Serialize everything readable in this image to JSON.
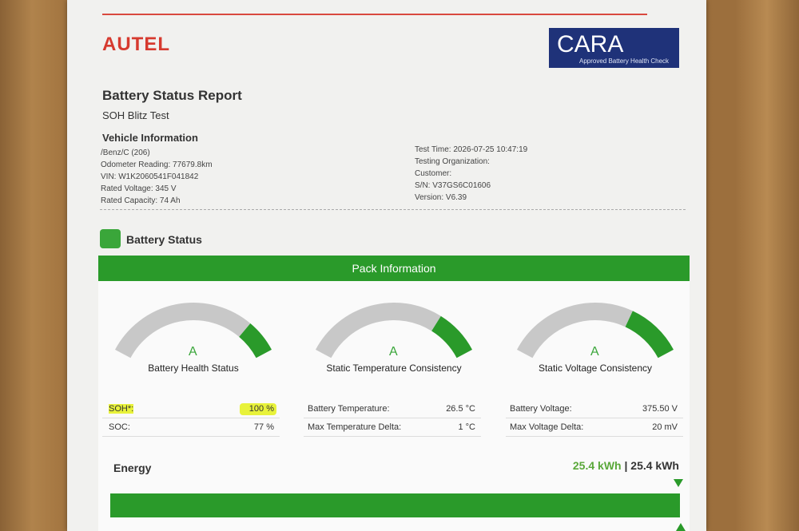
{
  "header": {
    "brand": "AUTEL",
    "badge": {
      "title": "CARA",
      "subtitle": "Approved Battery Health Check"
    }
  },
  "report": {
    "title": "Battery Status Report",
    "subtitle": "SOH Blitz Test"
  },
  "vehicle": {
    "heading": "Vehicle Information",
    "left": [
      "/Benz/C (206)",
      "Odometer Reading: 77679.8km",
      "VIN: W1K2060541F041842",
      "Rated Voltage: 345 V",
      "Rated Capacity: 74 Ah"
    ],
    "right": [
      "Test Time: 2026-07-25 10:47:19",
      "Testing Organization:",
      "Customer:",
      "S/N: V37GS6C01606",
      "Version: V6.39"
    ]
  },
  "battery_status": {
    "heading": "Battery Status",
    "pack_heading": "Pack Information",
    "gauges": [
      {
        "grade": "A",
        "label": "Battery Health Status",
        "rows": [
          [
            "SOH*:",
            "100 %"
          ],
          [
            "SOC:",
            "77 %"
          ]
        ]
      },
      {
        "grade": "A",
        "label": "Static Temperature Consistency",
        "rows": [
          [
            "Battery Temperature:",
            "26.5 °C"
          ],
          [
            "Max Temperature Delta:",
            "1 °C"
          ]
        ]
      },
      {
        "grade": "A",
        "label": "Static Voltage Consistency",
        "rows": [
          [
            "Battery Voltage:",
            "375.50 V"
          ],
          [
            "Max Voltage Delta:",
            "20 mV"
          ]
        ]
      }
    ]
  },
  "energy": {
    "label": "Energy",
    "current": "25.4 kWh",
    "separator": "|",
    "total": "25.4 kWh"
  }
}
